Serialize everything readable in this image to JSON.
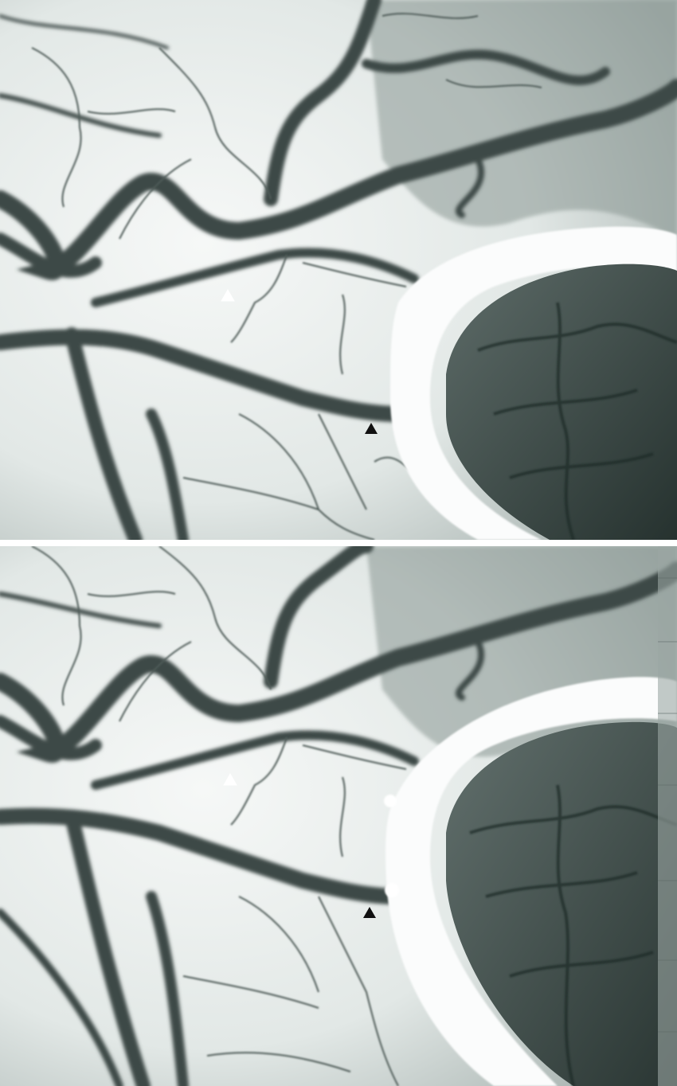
{
  "figure": {
    "panels": [
      {
        "id": "top",
        "markers": [
          {
            "color": "#ffffff",
            "shape": "triangle"
          },
          {
            "color": "#111111",
            "shape": "triangle"
          }
        ]
      },
      {
        "id": "bottom",
        "markers": [
          {
            "color": "#ffffff",
            "shape": "triangle"
          },
          {
            "color": "#111111",
            "shape": "triangle"
          }
        ]
      }
    ],
    "colors": {
      "tissue": "#e9eeec",
      "vessel": "#3c4a47",
      "lumen": "#2a3633",
      "rim": "#f7f9f8",
      "divider": "#ffffff"
    }
  }
}
